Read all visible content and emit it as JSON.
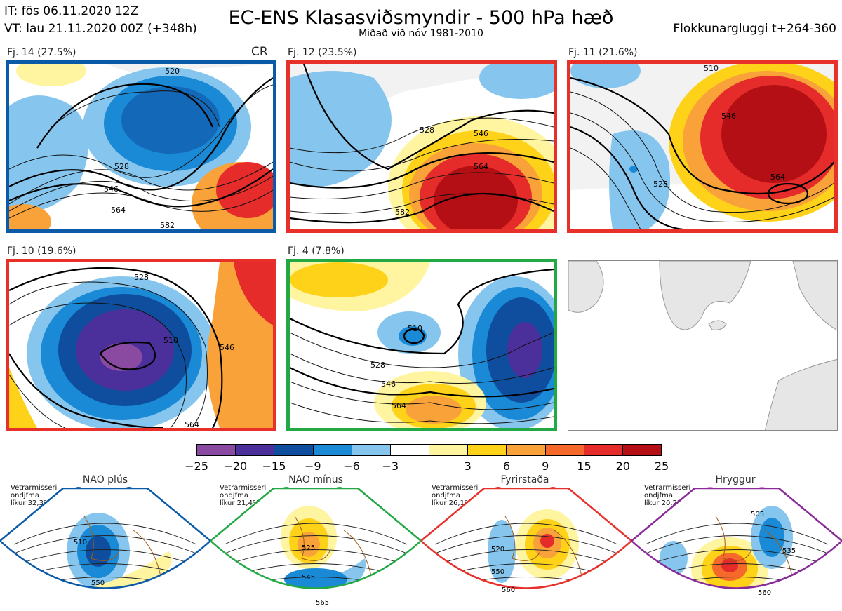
{
  "header": {
    "it_line": "IT: fös 06.11.2020 12Z",
    "vt_line": "VT: lau 21.11.2020 00Z  (+348h)",
    "title": "EC-ENS Klasasviðsmyndir - 500 hPa hæð",
    "subtitle": "Miðað við nóv 1981-2010",
    "window": "Flokkunargluggi t+264-360"
  },
  "panels": [
    {
      "label": "Fj. 14 (27.5%)",
      "tag": "CR",
      "border": "#0a5aa8",
      "contours": [
        "528",
        "546",
        "564",
        "582",
        "520"
      ]
    },
    {
      "label": "Fj. 12 (23.5%)",
      "border": "#e8302a",
      "contours": [
        "528",
        "546",
        "564",
        "582"
      ]
    },
    {
      "label": "Fj. 11 (21.6%)",
      "border": "#e8302a",
      "contours": [
        "510",
        "528",
        "546",
        "564"
      ]
    },
    {
      "label": "Fj. 10 (19.6%)",
      "border": "#e8302a",
      "contours": [
        "528",
        "546",
        "564",
        "510"
      ]
    },
    {
      "label": "Fj. 4 (7.8%)",
      "border": "#22a844",
      "contours": [
        "510",
        "528",
        "546",
        "564"
      ]
    }
  ],
  "colorbar": {
    "colors": [
      "#8a4aa2",
      "#4b2f9a",
      "#0f4e9e",
      "#1a8ad6",
      "#86c6ee",
      "#ffffff",
      "#fff4a0",
      "#ffd21a",
      "#f9a23a",
      "#f56a2a",
      "#e52c2a",
      "#b30f14"
    ],
    "ticks": [
      "−25",
      "−20",
      "−15",
      "−9",
      "−6",
      "−3",
      "3",
      "6",
      "9",
      "15",
      "20",
      "25"
    ]
  },
  "regimes": [
    {
      "name": "NAO plús",
      "note": [
        "Vetrarmisseri",
        "ondjfma",
        "líkur 32,3%"
      ],
      "color": "#0a5aa8",
      "dot": "#0a5aa8",
      "contours": [
        "510",
        "550"
      ]
    },
    {
      "name": "NAO mínus",
      "note": [
        "Vetrarmisseri",
        "ondjfma",
        "líkur 21,4%"
      ],
      "color": "#22a844",
      "dot": "#22a844",
      "contours": [
        "525",
        "545",
        "565"
      ]
    },
    {
      "name": "Fyrirstaða",
      "note": [
        "Vetrarmisseri",
        "ondjfma",
        "líkur 26,1%"
      ],
      "color": "#e8302a",
      "dot": "#e8302a",
      "contours": [
        "520",
        "550",
        "560"
      ]
    },
    {
      "name": "Hryggur",
      "note": [
        "Vetrarmisseri",
        "ondjfma",
        "líkur 20,2%"
      ],
      "color": "#8a2a9a",
      "dot": "#e66ee6",
      "contours": [
        "505",
        "535",
        "560"
      ]
    }
  ]
}
